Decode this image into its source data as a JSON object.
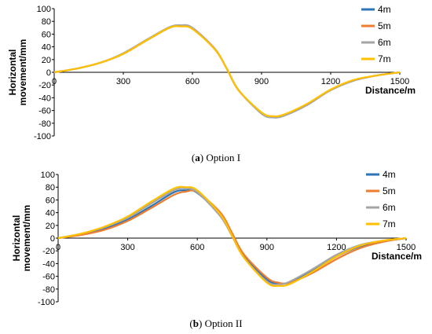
{
  "chart_data": [
    {
      "type": "line",
      "caption_letter": "a",
      "caption_text": "Option I",
      "xlabel": "Distance/m",
      "ylabel": "Horizontal movement/mm",
      "xlim": [
        0,
        1500
      ],
      "ylim": [
        -100,
        100
      ],
      "x_ticks": [
        "0",
        "300",
        "600",
        "900",
        "1200",
        "1500"
      ],
      "y_ticks": [
        "100",
        "80",
        "60",
        "40",
        "20",
        "0",
        "-20",
        "-40",
        "-60",
        "-80",
        "-100"
      ],
      "legend_position": "top-right",
      "grid": false,
      "x": [
        0,
        100,
        200,
        300,
        400,
        500,
        550,
        600,
        700,
        750,
        800,
        900,
        950,
        1000,
        1100,
        1200,
        1300,
        1400,
        1500
      ],
      "series": [
        {
          "name": "4m",
          "color": "#2e75b6",
          "values": [
            0,
            6,
            15,
            29,
            50,
            70,
            73,
            69,
            35,
            5,
            -28,
            -64,
            -70,
            -67,
            -50,
            -28,
            -13,
            -5,
            0
          ]
        },
        {
          "name": "5m",
          "color": "#ed7d31",
          "values": [
            0,
            6,
            15,
            29,
            50,
            70,
            73,
            69,
            35,
            5,
            -28,
            -64,
            -70,
            -67,
            -50,
            -28,
            -13,
            -5,
            0
          ]
        },
        {
          "name": "6m",
          "color": "#a5a5a5",
          "values": [
            0,
            6,
            15,
            30,
            51,
            71,
            74,
            70,
            36,
            5,
            -28,
            -65,
            -71,
            -68,
            -51,
            -28,
            -13,
            -5,
            0
          ]
        },
        {
          "name": "7m",
          "color": "#ffc000",
          "values": [
            0,
            6,
            15,
            29,
            50,
            70,
            72,
            68,
            35,
            5,
            -28,
            -63,
            -69,
            -66,
            -49,
            -27,
            -12,
            -5,
            0
          ]
        }
      ]
    },
    {
      "type": "line",
      "caption_letter": "b",
      "caption_text": "Option II",
      "xlabel": "Distance/m",
      "ylabel": "Horizontal movement/mm",
      "xlim": [
        0,
        1500
      ],
      "ylim": [
        -100,
        100
      ],
      "x_ticks": [
        "0",
        "300",
        "600",
        "900",
        "1200",
        "1500"
      ],
      "y_ticks": [
        "100",
        "80",
        "60",
        "40",
        "20",
        "0",
        "-20",
        "-40",
        "-60",
        "-80",
        "-100"
      ],
      "legend_position": "top-right",
      "grid": false,
      "x": [
        0,
        100,
        200,
        300,
        400,
        500,
        550,
        600,
        700,
        750,
        800,
        900,
        950,
        1000,
        1100,
        1200,
        1300,
        1400,
        1500
      ],
      "series": [
        {
          "name": "4m",
          "color": "#2e75b6",
          "values": [
            0,
            6,
            15,
            29,
            50,
            72,
            75,
            71,
            36,
            5,
            -28,
            -65,
            -71,
            -69,
            -51,
            -29,
            -13,
            -5,
            0
          ]
        },
        {
          "name": "5m",
          "color": "#ed7d31",
          "values": [
            0,
            5,
            13,
            27,
            47,
            68,
            73,
            72,
            40,
            8,
            -25,
            -62,
            -70,
            -70,
            -54,
            -33,
            -16,
            -6,
            0
          ]
        },
        {
          "name": "6m",
          "color": "#a5a5a5",
          "values": [
            0,
            7,
            17,
            32,
            54,
            75,
            78,
            72,
            34,
            3,
            -30,
            -68,
            -73,
            -68,
            -48,
            -26,
            -11,
            -4,
            0
          ]
        },
        {
          "name": "7m",
          "color": "#ffc000",
          "values": [
            0,
            7,
            18,
            34,
            57,
            78,
            80,
            75,
            37,
            4,
            -30,
            -70,
            -75,
            -72,
            -52,
            -29,
            -12,
            -4,
            0
          ]
        }
      ]
    }
  ]
}
